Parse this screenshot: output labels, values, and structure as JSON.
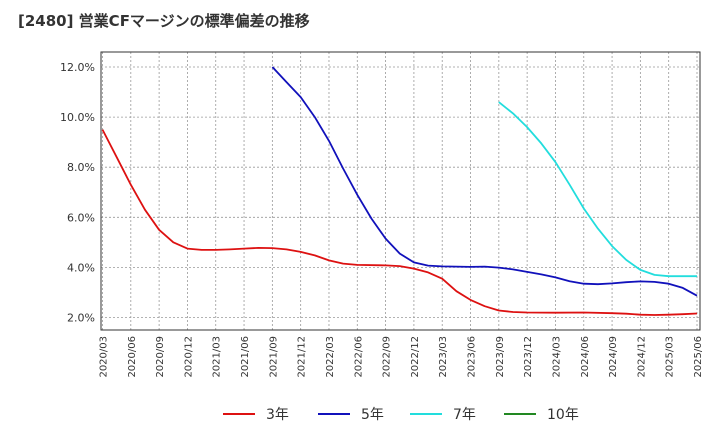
{
  "chart_data": {
    "type": "line",
    "title": "[2480]  営業CFマージンの標準偏差の推移",
    "xlabel": "",
    "ylabel": "",
    "ylim": [
      1.5,
      12.6
    ],
    "grid": true,
    "legend_position": "bottom",
    "y_ticks": [
      2.0,
      4.0,
      6.0,
      8.0,
      10.0,
      12.0
    ],
    "y_tick_labels": [
      "2.0%",
      "4.0%",
      "6.0%",
      "8.0%",
      "10.0%",
      "12.0%"
    ],
    "x_tick_labels": [
      "2020/03",
      "2020/06",
      "2020/09",
      "2020/12",
      "2021/03",
      "2021/06",
      "2021/09",
      "2021/12",
      "2022/03",
      "2022/06",
      "2022/09",
      "2022/12",
      "2023/03",
      "2023/06",
      "2023/09",
      "2023/12",
      "2024/03",
      "2024/06",
      "2024/09",
      "2024/12",
      "2025/03",
      "2025/06"
    ],
    "series": [
      {
        "name": "3年",
        "color": "#dd1111",
        "points": [
          [
            0,
            9.5
          ],
          [
            0.5,
            8.4
          ],
          [
            1,
            7.3
          ],
          [
            1.5,
            6.3
          ],
          [
            2,
            5.5
          ],
          [
            2.5,
            5.0
          ],
          [
            3,
            4.75
          ],
          [
            3.5,
            4.7
          ],
          [
            4,
            4.7
          ],
          [
            4.5,
            4.72
          ],
          [
            5,
            4.75
          ],
          [
            5.5,
            4.78
          ],
          [
            6,
            4.77
          ],
          [
            6.5,
            4.72
          ],
          [
            7,
            4.62
          ],
          [
            7.5,
            4.48
          ],
          [
            8,
            4.28
          ],
          [
            8.5,
            4.15
          ],
          [
            9,
            4.1
          ],
          [
            10,
            4.08
          ],
          [
            10.5,
            4.05
          ],
          [
            11,
            3.95
          ],
          [
            11.5,
            3.8
          ],
          [
            12,
            3.55
          ],
          [
            12.5,
            3.05
          ],
          [
            13,
            2.7
          ],
          [
            13.5,
            2.45
          ],
          [
            14,
            2.28
          ],
          [
            14.5,
            2.22
          ],
          [
            15,
            2.2
          ],
          [
            16,
            2.19
          ],
          [
            17,
            2.2
          ],
          [
            18,
            2.17
          ],
          [
            18.5,
            2.15
          ],
          [
            19,
            2.11
          ],
          [
            19.5,
            2.1
          ],
          [
            20,
            2.11
          ],
          [
            20.5,
            2.13
          ],
          [
            21,
            2.16
          ]
        ]
      },
      {
        "name": "5年",
        "color": "#1111bb",
        "points": [
          [
            6,
            12.0
          ],
          [
            6.5,
            11.4
          ],
          [
            7,
            10.8
          ],
          [
            7.5,
            10.0
          ],
          [
            8,
            9.05
          ],
          [
            8.5,
            7.95
          ],
          [
            9,
            6.9
          ],
          [
            9.5,
            5.95
          ],
          [
            10,
            5.15
          ],
          [
            10.5,
            4.55
          ],
          [
            11,
            4.2
          ],
          [
            11.5,
            4.07
          ],
          [
            12,
            4.04
          ],
          [
            12.5,
            4.03
          ],
          [
            13,
            4.02
          ],
          [
            13.5,
            4.03
          ],
          [
            14,
            3.99
          ],
          [
            14.5,
            3.92
          ],
          [
            15,
            3.82
          ],
          [
            15.5,
            3.72
          ],
          [
            16,
            3.6
          ],
          [
            16.5,
            3.45
          ],
          [
            17,
            3.35
          ],
          [
            17.5,
            3.33
          ],
          [
            18,
            3.36
          ],
          [
            18.5,
            3.41
          ],
          [
            19,
            3.44
          ],
          [
            19.5,
            3.42
          ],
          [
            20,
            3.35
          ],
          [
            20.5,
            3.18
          ],
          [
            21,
            2.87
          ]
        ]
      },
      {
        "name": "7年",
        "color": "#22dddd",
        "points": [
          [
            14,
            10.6
          ],
          [
            14.5,
            10.15
          ],
          [
            15,
            9.6
          ],
          [
            15.5,
            8.95
          ],
          [
            16,
            8.2
          ],
          [
            16.5,
            7.3
          ],
          [
            17,
            6.35
          ],
          [
            17.5,
            5.55
          ],
          [
            18,
            4.85
          ],
          [
            18.5,
            4.3
          ],
          [
            19,
            3.9
          ],
          [
            19.5,
            3.7
          ],
          [
            20,
            3.65
          ],
          [
            20.5,
            3.65
          ],
          [
            21,
            3.65
          ]
        ]
      },
      {
        "name": "10年",
        "color": "#228822",
        "points": []
      }
    ]
  }
}
